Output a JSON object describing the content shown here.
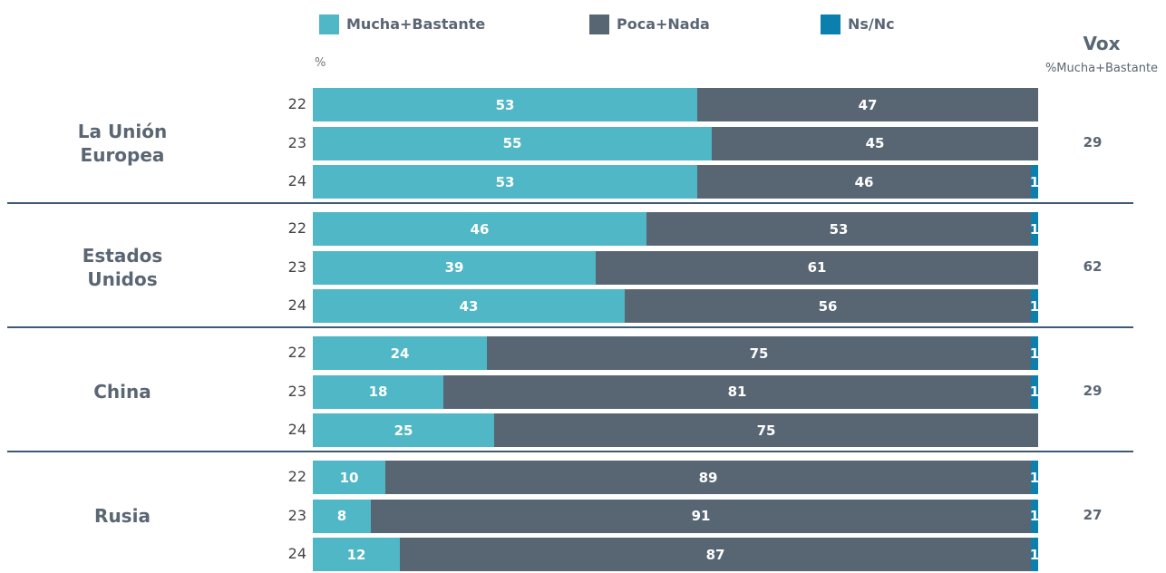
{
  "chart_data": {
    "type": "bar",
    "stacked": true,
    "orientation": "horizontal",
    "unit_label": "%",
    "xlim": [
      0,
      100
    ],
    "groups": [
      "La Unión Europea",
      "Estados Unidos",
      "China",
      "Rusia"
    ],
    "categories": [
      "22",
      "23",
      "24",
      "22",
      "23",
      "24",
      "22",
      "23",
      "24",
      "22",
      "23",
      "24"
    ],
    "series": [
      {
        "name": "Mucha+Bastante",
        "color": "#4fb7c5",
        "values": [
          53,
          55,
          53,
          46,
          39,
          43,
          24,
          18,
          25,
          10,
          8,
          12
        ]
      },
      {
        "name": "Poca+Nada",
        "color": "#586674",
        "values": [
          47,
          45,
          46,
          53,
          61,
          56,
          75,
          81,
          75,
          89,
          91,
          87
        ]
      },
      {
        "name": "Ns/Nc",
        "color": "#0b7fae",
        "values": [
          null,
          null,
          1,
          1,
          null,
          1,
          1,
          1,
          null,
          1,
          1,
          1
        ]
      }
    ],
    "side_column": {
      "title": "Vox",
      "subtitle": "%Mucha+Bastante",
      "values": [
        29,
        62,
        29,
        27
      ]
    }
  }
}
